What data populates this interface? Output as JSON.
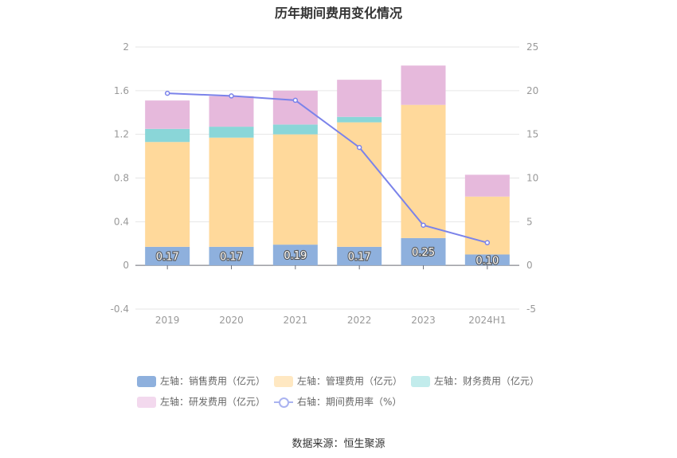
{
  "chart_data": {
    "type": "bar",
    "title": "历年期间费用变化情况",
    "categories": [
      "2019",
      "2020",
      "2021",
      "2022",
      "2023",
      "2024H1"
    ],
    "stacked": true,
    "left_axis": {
      "ylim": [
        -0.4,
        2
      ],
      "ticks": [
        "-0.4",
        "0",
        "0.4",
        "0.8",
        "1.2",
        "1.6",
        "2"
      ]
    },
    "right_axis": {
      "ylim": [
        -5,
        25
      ],
      "ticks": [
        "-5",
        "0",
        "5",
        "10",
        "15",
        "20",
        "25"
      ]
    },
    "grid": true,
    "legend_position": "bottom",
    "series": [
      {
        "name": "左轴：销售费用（亿元）",
        "type": "bar",
        "axis": "left",
        "color": "#8eb0dd",
        "values": [
          0.17,
          0.17,
          0.19,
          0.17,
          0.25,
          0.1
        ],
        "labels": [
          "0.17",
          "0.17",
          "0.19",
          "0.17",
          "0.25",
          "0.10"
        ]
      },
      {
        "name": "左轴：管理费用（亿元）",
        "type": "bar",
        "axis": "left",
        "color": "#ffd99b",
        "values": [
          0.96,
          1.0,
          1.01,
          1.14,
          1.22,
          0.53
        ]
      },
      {
        "name": "左轴：财务费用（亿元）",
        "type": "bar",
        "axis": "left",
        "color": "#8ad6d8",
        "values": [
          0.12,
          0.1,
          0.09,
          0.05,
          0.0,
          0.0
        ]
      },
      {
        "name": "左轴：研发费用（亿元）",
        "type": "bar",
        "axis": "left",
        "color": "#e6b9dc",
        "values": [
          0.26,
          0.28,
          0.31,
          0.34,
          0.36,
          0.2
        ]
      },
      {
        "name": "右轴：期间费用率（%）",
        "type": "line",
        "axis": "right",
        "color": "#7b83ea",
        "values": [
          19.7,
          19.4,
          18.9,
          13.5,
          4.6,
          2.6
        ]
      }
    ]
  },
  "legend_items": [
    {
      "label": "左轴：销售费用（亿元）",
      "color": "#8eb0dd"
    },
    {
      "label": "左轴：管理费用（亿元）",
      "color": "#ffe8c2"
    },
    {
      "label": "左轴：财务费用（亿元）",
      "color": "#c2ecec"
    },
    {
      "label": "左轴：研发费用（亿元）",
      "color": "#f3d9ee"
    },
    {
      "label": "右轴：期间费用率（%）",
      "color": "#aab3f0"
    }
  ],
  "source": "数据来源：恒生聚源"
}
